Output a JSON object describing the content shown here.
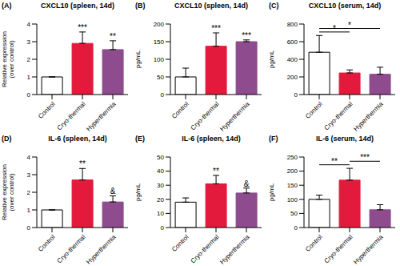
{
  "chart_data": [
    {
      "type": "bar",
      "label": "(A)",
      "title": "CXCL10 (spleen, 14d)",
      "ylabel": "Relative expression (over control)",
      "categories": [
        "Control",
        "Cryo-thermal",
        "Hyperthermia"
      ],
      "values": [
        1,
        2.9,
        2.55
      ],
      "errors": [
        0,
        0.65,
        0.5
      ],
      "colors": [
        "#ffffff",
        "#e31a3c",
        "#8e4b8e"
      ],
      "ylim": [
        0,
        4
      ],
      "yticks": [
        0,
        1,
        2,
        3,
        4
      ],
      "grid": false,
      "annotations": [
        {
          "category": "Cryo-thermal",
          "text": "***"
        },
        {
          "category": "Hyperthermia",
          "text": "**"
        }
      ],
      "comparisons": []
    },
    {
      "type": "bar",
      "label": "(B)",
      "title": "CXCL10 (spleen, 14d)",
      "ylabel": "pg/mL",
      "categories": [
        "Control",
        "Cryo-thermal",
        "Hyperthermia"
      ],
      "values": [
        50,
        137,
        150
      ],
      "errors": [
        25,
        38,
        5
      ],
      "colors": [
        "#ffffff",
        "#e31a3c",
        "#8e4b8e"
      ],
      "ylim": [
        0,
        200
      ],
      "yticks": [
        0,
        50,
        100,
        150,
        200
      ],
      "grid": false,
      "annotations": [
        {
          "category": "Cryo-thermal",
          "text": "***"
        },
        {
          "category": "Hyperthermia",
          "text": "***"
        }
      ],
      "comparisons": []
    },
    {
      "type": "bar",
      "label": "(C)",
      "title": "CXCL10 (serum, 14d)",
      "ylabel": "pg/mL",
      "categories": [
        "Control",
        "Cryo-thermal",
        "Hyperthermia"
      ],
      "values": [
        480,
        245,
        230
      ],
      "errors": [
        190,
        35,
        80
      ],
      "colors": [
        "#ffffff",
        "#e31a3c",
        "#8e4b8e"
      ],
      "ylim": [
        0,
        800
      ],
      "yticks": [
        0,
        200,
        400,
        600,
        800
      ],
      "grid": false,
      "annotations": [],
      "comparisons": [
        {
          "from": "Control",
          "to": "Cryo-thermal",
          "text": "*"
        },
        {
          "from": "Control",
          "to": "Hyperthermia",
          "text": "*"
        }
      ]
    },
    {
      "type": "bar",
      "label": "(D)",
      "title": "IL-6 (spleen, 14d)",
      "ylabel": "Relative expression (over control)",
      "categories": [
        "Control",
        "Cryo-thermal",
        "Hyperthermia"
      ],
      "values": [
        1,
        2.7,
        1.45
      ],
      "errors": [
        0,
        0.65,
        0.35
      ],
      "colors": [
        "#ffffff",
        "#e31a3c",
        "#8e4b8e"
      ],
      "ylim": [
        0,
        4
      ],
      "yticks": [
        0,
        1,
        2,
        3,
        4
      ],
      "grid": false,
      "annotations": [
        {
          "category": "Cryo-thermal",
          "text": "**"
        },
        {
          "category": "Hyperthermia",
          "text": "&"
        }
      ],
      "comparisons": []
    },
    {
      "type": "bar",
      "label": "(E)",
      "title": "IL-6 (spleen, 14d)",
      "ylabel": "pg/mL",
      "categories": [
        "Control",
        "Cryo-thermal",
        "Hyperthermia"
      ],
      "values": [
        18,
        31,
        24.5
      ],
      "errors": [
        3,
        6,
        3.5
      ],
      "colors": [
        "#ffffff",
        "#e31a3c",
        "#8e4b8e"
      ],
      "ylim": [
        0,
        50
      ],
      "yticks": [
        0,
        10,
        20,
        30,
        40,
        50
      ],
      "grid": false,
      "annotations": [
        {
          "category": "Cryo-thermal",
          "text": "**"
        },
        {
          "category": "Hyperthermia",
          "text": "&"
        }
      ],
      "comparisons": []
    },
    {
      "type": "bar",
      "label": "(F)",
      "title": "IL-6 (serum, 14d)",
      "ylabel": "pg/mL",
      "categories": [
        "Control",
        "Cryo-thermal",
        "Hyperthermia"
      ],
      "values": [
        100,
        168,
        63
      ],
      "errors": [
        15,
        42,
        18
      ],
      "colors": [
        "#ffffff",
        "#e31a3c",
        "#8e4b8e"
      ],
      "ylim": [
        0,
        250
      ],
      "yticks": [
        0,
        50,
        100,
        150,
        200,
        250
      ],
      "grid": false,
      "annotations": [],
      "comparisons": [
        {
          "from": "Control",
          "to": "Cryo-thermal",
          "text": "**"
        },
        {
          "from": "Cryo-thermal",
          "to": "Hyperthermia",
          "text": "***"
        }
      ]
    }
  ]
}
